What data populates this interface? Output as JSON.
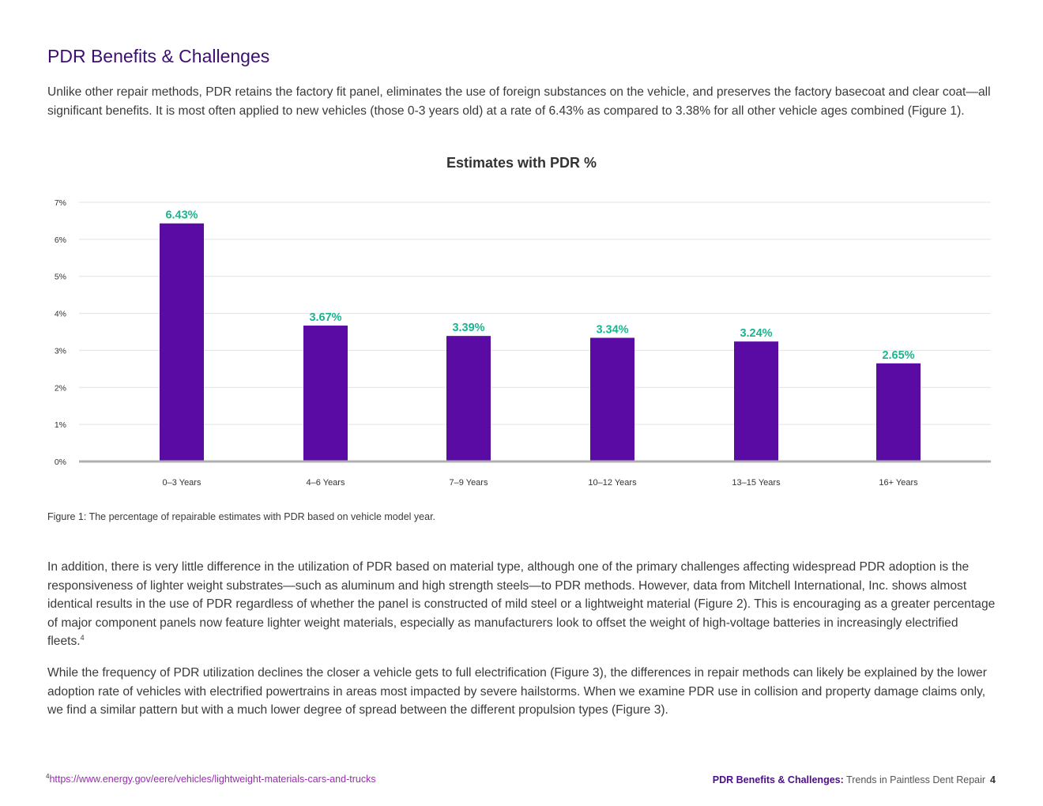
{
  "page": {
    "title": "PDR Benefits & Challenges",
    "intro": "Unlike other repair methods, PDR retains the factory fit panel, eliminates the use of foreign substances on the vehicle, and preserves the factory basecoat and clear coat—all significant benefits. It is most often applied to new vehicles (those 0-3 years old) at a rate of 6.43% as compared to 3.38% for all other vehicle ages combined (Figure 1).",
    "caption": "Figure 1: The percentage of repairable estimates with PDR based on vehicle model year.",
    "paragraph2": "In addition, there is very little difference in the utilization of PDR based on material type, although one of the primary challenges affecting widespread PDR adoption is the responsiveness of lighter weight substrates—such as aluminum and high strength steels—to PDR methods. However, data from Mitchell International, Inc. shows almost identical results in the use of PDR regardless of whether the panel is constructed of mild steel or a lightweight material (Figure 2). This is encouraging as a greater percentage of major component panels now feature lighter weight materials, especially as manufacturers look to offset the weight of high-voltage batteries in increasingly electrified fleets.",
    "paragraph2_footnote_ref": "4",
    "paragraph3": "While the frequency of PDR utilization declines the closer a vehicle gets to full electrification (Figure 3), the differences in repair methods can likely be explained by the lower adoption rate of vehicles with electrified powertrains in areas most impacted by severe hailstorms. When we examine PDR use in collision and property damage claims only, we find a similar pattern but with a much lower degree of spread between the different propulsion types (Figure 3).",
    "footnote_number": "4",
    "footnote_url": "https://www.energy.gov/eere/vehicles/lightweight-materials-cars-and-trucks"
  },
  "footer": {
    "section": "PDR Benefits & Challenges:",
    "doc_title": "Trends in Paintless Dent Repair",
    "page_number": "4"
  },
  "chart_data": {
    "type": "bar",
    "title": "Estimates with PDR %",
    "categories": [
      "0–3 Years",
      "4–6 Years",
      "7–9 Years",
      "10–12 Years",
      "13–15 Years",
      "16+ Years"
    ],
    "values": [
      6.43,
      3.67,
      3.39,
      3.34,
      3.24,
      2.65
    ],
    "data_labels": [
      "6.43%",
      "3.67%",
      "3.39%",
      "3.34%",
      "3.24%",
      "2.65%"
    ],
    "yticks": [
      "0%",
      "1%",
      "2%",
      "3%",
      "4%",
      "5%",
      "6%",
      "7%"
    ],
    "ylim": [
      0,
      7
    ],
    "xlabel": "",
    "ylabel": "",
    "grid": true,
    "colors": {
      "bar": "#5a0ba3",
      "label": "#19b58f",
      "grid": "#e3e3e3",
      "axis": "#b0b0b0",
      "tick": "#333333"
    }
  }
}
